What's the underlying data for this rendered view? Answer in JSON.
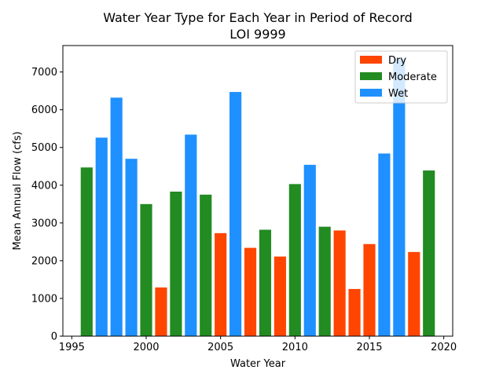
{
  "chart_data": {
    "type": "bar",
    "title": "Water Year Type for Each Year in Period of Record",
    "subtitle": "LOI 9999",
    "xlabel": "Water Year",
    "ylabel": "Mean Annual Flow (cfs)",
    "xlim": [
      1994.4,
      2020.6
    ],
    "ylim": [
      0,
      7700
    ],
    "x_ticks": [
      1995,
      2000,
      2005,
      2010,
      2015,
      2020
    ],
    "y_ticks": [
      0,
      1000,
      2000,
      3000,
      4000,
      5000,
      6000,
      7000
    ],
    "grid": false,
    "legend_position": "top-right",
    "categories": [
      {
        "name": "Dry",
        "color": "#ff4500"
      },
      {
        "name": "Moderate",
        "color": "#228b22"
      },
      {
        "name": "Wet",
        "color": "#1e90ff"
      }
    ],
    "bars": [
      {
        "x": 1996,
        "value": 4470,
        "category": "Moderate"
      },
      {
        "x": 1997,
        "value": 5260,
        "category": "Wet"
      },
      {
        "x": 1998,
        "value": 6320,
        "category": "Wet"
      },
      {
        "x": 1999,
        "value": 4700,
        "category": "Wet"
      },
      {
        "x": 2000,
        "value": 3500,
        "category": "Moderate"
      },
      {
        "x": 2001,
        "value": 1290,
        "category": "Dry"
      },
      {
        "x": 2002,
        "value": 3830,
        "category": "Moderate"
      },
      {
        "x": 2003,
        "value": 5340,
        "category": "Wet"
      },
      {
        "x": 2004,
        "value": 3750,
        "category": "Moderate"
      },
      {
        "x": 2005,
        "value": 2730,
        "category": "Dry"
      },
      {
        "x": 2006,
        "value": 6470,
        "category": "Wet"
      },
      {
        "x": 2007,
        "value": 2340,
        "category": "Dry"
      },
      {
        "x": 2008,
        "value": 2820,
        "category": "Moderate"
      },
      {
        "x": 2009,
        "value": 2110,
        "category": "Dry"
      },
      {
        "x": 2010,
        "value": 4030,
        "category": "Moderate"
      },
      {
        "x": 2011,
        "value": 4540,
        "category": "Wet"
      },
      {
        "x": 2012,
        "value": 2900,
        "category": "Moderate"
      },
      {
        "x": 2013,
        "value": 2800,
        "category": "Dry"
      },
      {
        "x": 2014,
        "value": 1250,
        "category": "Dry"
      },
      {
        "x": 2015,
        "value": 2440,
        "category": "Dry"
      },
      {
        "x": 2016,
        "value": 4840,
        "category": "Wet"
      },
      {
        "x": 2017,
        "value": 7350,
        "category": "Wet"
      },
      {
        "x": 2018,
        "value": 2230,
        "category": "Dry"
      },
      {
        "x": 2019,
        "value": 4390,
        "category": "Moderate"
      }
    ]
  }
}
